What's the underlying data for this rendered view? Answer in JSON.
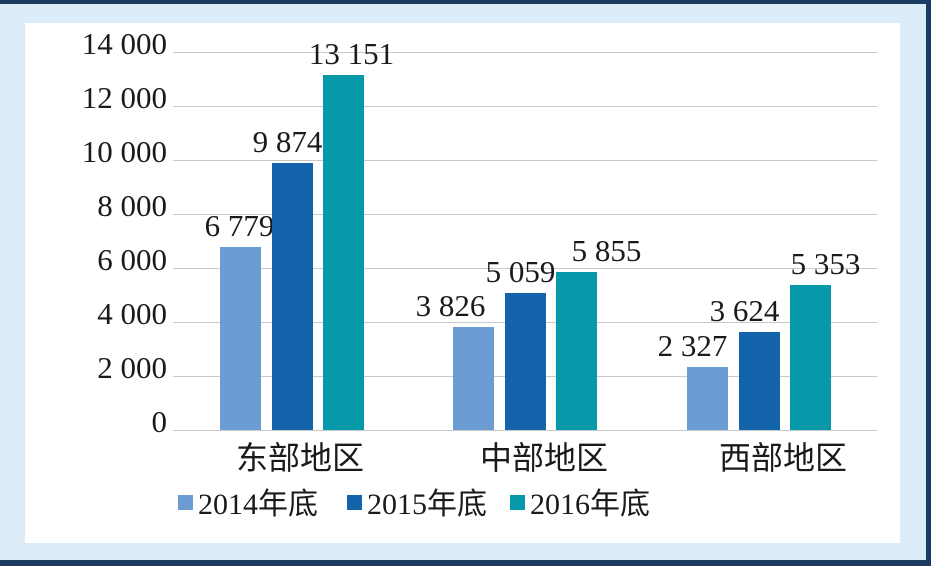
{
  "colors": {
    "card_background": "#dcecf8",
    "card_border": "#1b3c60",
    "plot_background": "#ffffff",
    "gridline": "#c9c9c9",
    "text": "#1a1a1a"
  },
  "chart_data": {
    "type": "bar",
    "title": "",
    "xlabel": "",
    "ylabel": "",
    "categories": [
      "东部地区",
      "中部地区",
      "西部地区"
    ],
    "series": [
      {
        "name": "2014年底",
        "color": "#6b9cd2",
        "values": [
          6779,
          3826,
          2327
        ],
        "labels": [
          "6 779",
          "3 826",
          "2 327"
        ]
      },
      {
        "name": "2015年底",
        "color": "#1464ac",
        "values": [
          9874,
          5059,
          3624
        ],
        "labels": [
          "9 874",
          "5 059",
          "3 624"
        ]
      },
      {
        "name": "2016年底",
        "color": "#0599a9",
        "values": [
          13151,
          5855,
          5353
        ],
        "labels": [
          "13 151",
          "5 855",
          "5 353"
        ]
      }
    ],
    "y_axis": {
      "min": 0,
      "max": 14000,
      "step": 2000,
      "tick_labels": [
        "0",
        "2 000",
        "4 000",
        "6 000",
        "8 000",
        "10 000",
        "12 000",
        "14 000"
      ]
    },
    "grid": true,
    "legend_position": "bottom"
  }
}
